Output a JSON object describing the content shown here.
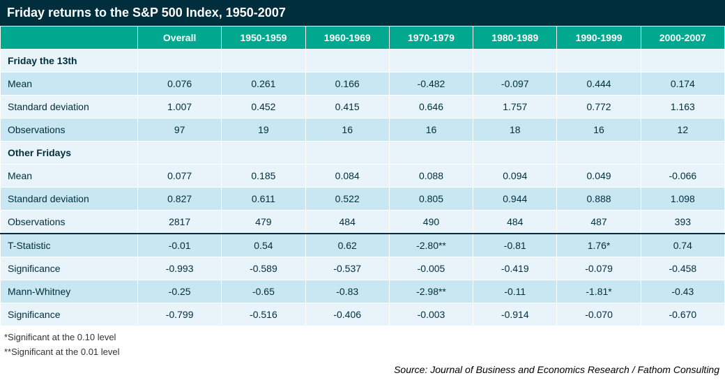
{
  "colors": {
    "title_bg": "#002e3d",
    "title_fg": "#ffffff",
    "header_bg": "#00a88f",
    "header_fg": "#ffffff",
    "row_odd": "#e8f4fa",
    "row_even": "#c9e6f3",
    "section_bg": "#e8f4fa",
    "text": "#002e3d",
    "footnote_text": "#333333"
  },
  "title": "Friday returns to the S&P 500 Index, 1950-2007",
  "columns": [
    "Overall",
    "1950-1959",
    "1960-1969",
    "1970-1979",
    "1980-1989",
    "1990-1999",
    "2000-2007"
  ],
  "sections": [
    {
      "label": "Friday the 13th",
      "rows": [
        {
          "label": "Mean",
          "values": [
            "0.076",
            "0.261",
            "0.166",
            "-0.482",
            "-0.097",
            "0.444",
            "0.174"
          ]
        },
        {
          "label": "Standard deviation",
          "values": [
            "1.007",
            "0.452",
            "0.415",
            "0.646",
            "1.757",
            "0.772",
            "1.163"
          ]
        },
        {
          "label": "Observations",
          "values": [
            "97",
            "19",
            "16",
            "16",
            "18",
            "16",
            "12"
          ]
        }
      ]
    },
    {
      "label": "Other Fridays",
      "rows": [
        {
          "label": "Mean",
          "values": [
            "0.077",
            "0.185",
            "0.084",
            "0.088",
            "0.094",
            "0.049",
            "-0.066"
          ]
        },
        {
          "label": "Standard deviation",
          "values": [
            "0.827",
            "0.611",
            "0.522",
            "0.805",
            "0.944",
            "0.888",
            "1.098"
          ]
        },
        {
          "label": "Observations",
          "values": [
            "2817",
            "479",
            "484",
            "490",
            "484",
            "487",
            "393"
          ]
        }
      ]
    }
  ],
  "stat_rows": [
    {
      "label": "T-Statistic",
      "values": [
        "-0.01",
        "0.54",
        "0.62",
        "-2.80**",
        "-0.81",
        "1.76*",
        "0.74"
      ]
    },
    {
      "label": "Significance",
      "values": [
        "-0.993",
        "-0.589",
        "-0.537",
        "-0.005",
        "-0.419",
        "-0.079",
        "-0.458"
      ]
    },
    {
      "label": "Mann-Whitney",
      "values": [
        "-0.25",
        "-0.65",
        "-0.83",
        "-2.98**",
        "-0.11",
        "-1.81*",
        "-0.43"
      ]
    },
    {
      "label": "Significance",
      "values": [
        "-0.799",
        "-0.516",
        "-0.406",
        "-0.003",
        "-0.914",
        "-0.070",
        "-0.670"
      ]
    }
  ],
  "footnotes": [
    "*Significant at the 0.10 level",
    "**Significant at the 0.01 level"
  ],
  "source": "Source: Journal of Business and Economics Research / Fathom Consulting"
}
